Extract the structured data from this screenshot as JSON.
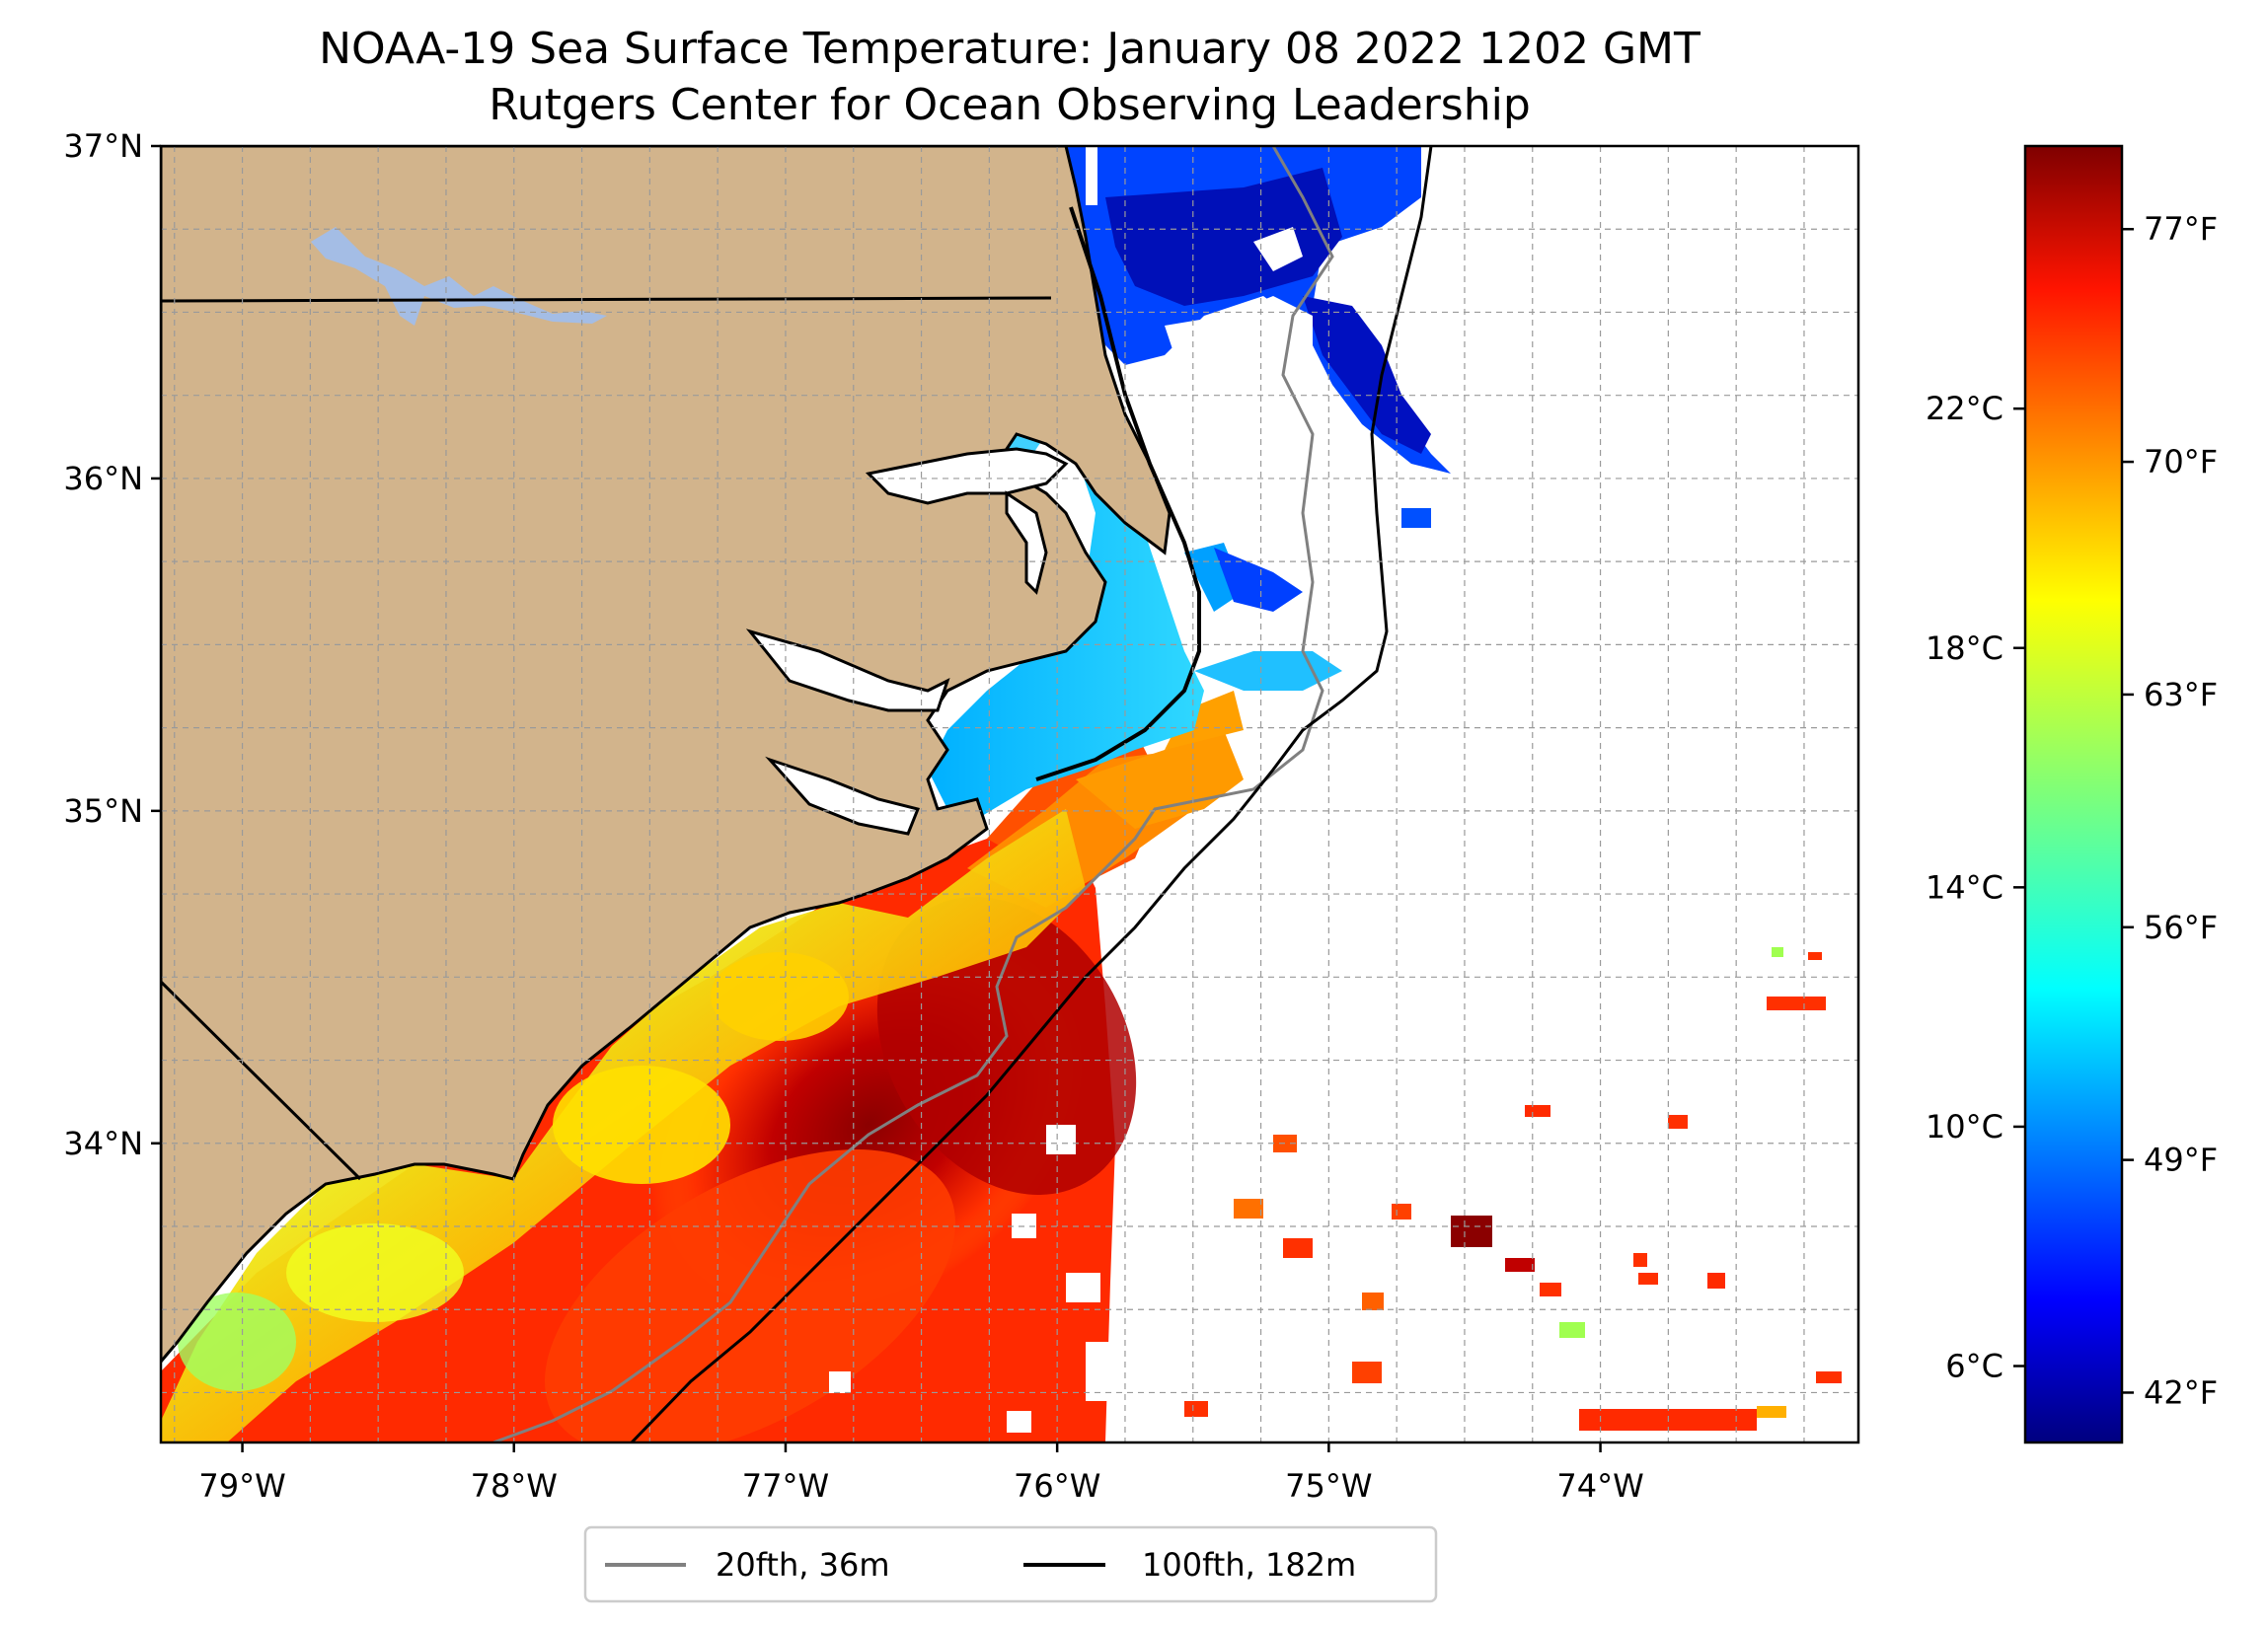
{
  "title": {
    "line1": "NOAA-19 Sea Surface Temperature: January 08 2022 1202 GMT",
    "line2": "Rutgers Center for Ocean Observing Leadership"
  },
  "map": {
    "lon_range": [
      -79.3,
      -73.05
    ],
    "lat_range": [
      33.1,
      37.0
    ],
    "lat_ticks": [
      {
        "value": 37,
        "label": "37°N"
      },
      {
        "value": 36,
        "label": "36°N"
      },
      {
        "value": 35,
        "label": "35°N"
      },
      {
        "value": 34,
        "label": "34°N"
      }
    ],
    "lon_ticks": [
      {
        "value": -79,
        "label": "79°W"
      },
      {
        "value": -78,
        "label": "78°W"
      },
      {
        "value": -77,
        "label": "77°W"
      },
      {
        "value": -76,
        "label": "76°W"
      },
      {
        "value": -75,
        "label": "75°W"
      },
      {
        "value": -74,
        "label": "74°W"
      }
    ],
    "land_color": "#d2b48c",
    "lake_color": "#a4bde5",
    "grid": "dashed gray, every 0.25 degrees"
  },
  "colorbar": {
    "colormap": "jet",
    "celsius_ticks": [
      {
        "value": 22,
        "label": "22°C"
      },
      {
        "value": 18,
        "label": "18°C"
      },
      {
        "value": 14,
        "label": "14°C"
      },
      {
        "value": 10,
        "label": "10°C"
      },
      {
        "value": 6,
        "label": "6°C"
      }
    ],
    "fahrenheit_ticks": [
      {
        "value": 77,
        "label": "77°F"
      },
      {
        "value": 70,
        "label": "70°F"
      },
      {
        "value": 63,
        "label": "63°F"
      },
      {
        "value": 56,
        "label": "56°F"
      },
      {
        "value": 49,
        "label": "49°F"
      },
      {
        "value": 42,
        "label": "42°F"
      }
    ],
    "range_f": [
      40.5,
      79.5
    ]
  },
  "legend": {
    "items": [
      {
        "label": "20fth, 36m",
        "color": "#808080"
      },
      {
        "label": "100fth, 182m",
        "color": "#000000"
      }
    ]
  }
}
